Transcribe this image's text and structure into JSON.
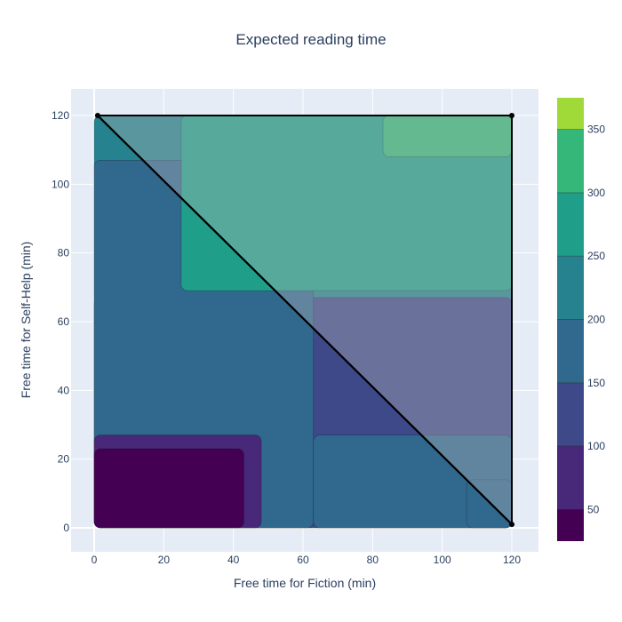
{
  "chart_data": {
    "type": "contour",
    "title": "Expected reading time",
    "xlabel": "Free time for Fiction (min)",
    "ylabel": "Free time for Self-Help (min)",
    "xlim": [
      -6,
      128
    ],
    "ylim": [
      -6,
      128
    ],
    "x_ticks": [
      0,
      20,
      40,
      60,
      80,
      100,
      120
    ],
    "y_ticks": [
      0,
      20,
      40,
      60,
      80,
      100,
      120
    ],
    "grid": true,
    "colorscale": "Viridis",
    "colorbar": {
      "range": [
        25,
        375
      ],
      "levels": [
        25,
        50,
        100,
        150,
        200,
        250,
        300,
        350,
        375
      ],
      "tick_values": [
        50,
        100,
        150,
        200,
        250,
        300,
        350
      ],
      "colors": [
        "#440154",
        "#482878",
        "#3e4989",
        "#31688e",
        "#26828e",
        "#1f9e89",
        "#35b779",
        "#a0da39",
        "#fde725"
      ]
    },
    "regions": [
      {
        "value": 25,
        "x": [
          0,
          43
        ],
        "y": [
          0,
          23
        ]
      },
      {
        "value": 75,
        "x": [
          0,
          48
        ],
        "y": [
          0,
          27
        ]
      },
      {
        "value": 125,
        "x": [
          0,
          120
        ],
        "y": [
          0,
          67
        ]
      },
      {
        "value": 175,
        "x": [
          0,
          63
        ],
        "y": [
          0,
          107
        ]
      },
      {
        "value": 175,
        "x": [
          63,
          120
        ],
        "y": [
          0,
          27
        ]
      },
      {
        "value": 175,
        "x": [
          107,
          120
        ],
        "y": [
          0,
          14
        ]
      },
      {
        "value": 225,
        "x": [
          0,
          120
        ],
        "y": [
          0,
          120
        ]
      },
      {
        "value": 275,
        "x": [
          25,
          120
        ],
        "y": [
          69,
          120
        ]
      },
      {
        "value": 325,
        "x": [
          83,
          120
        ],
        "y": [
          108,
          120
        ]
      }
    ],
    "feasible_region": {
      "vertices": [
        [
          1,
          120
        ],
        [
          120,
          120
        ],
        [
          120,
          1
        ]
      ],
      "shade": "rgba(190,190,190,0.35)"
    },
    "constraint_line": {
      "from": [
        1,
        120
      ],
      "to": [
        120,
        1
      ]
    }
  }
}
